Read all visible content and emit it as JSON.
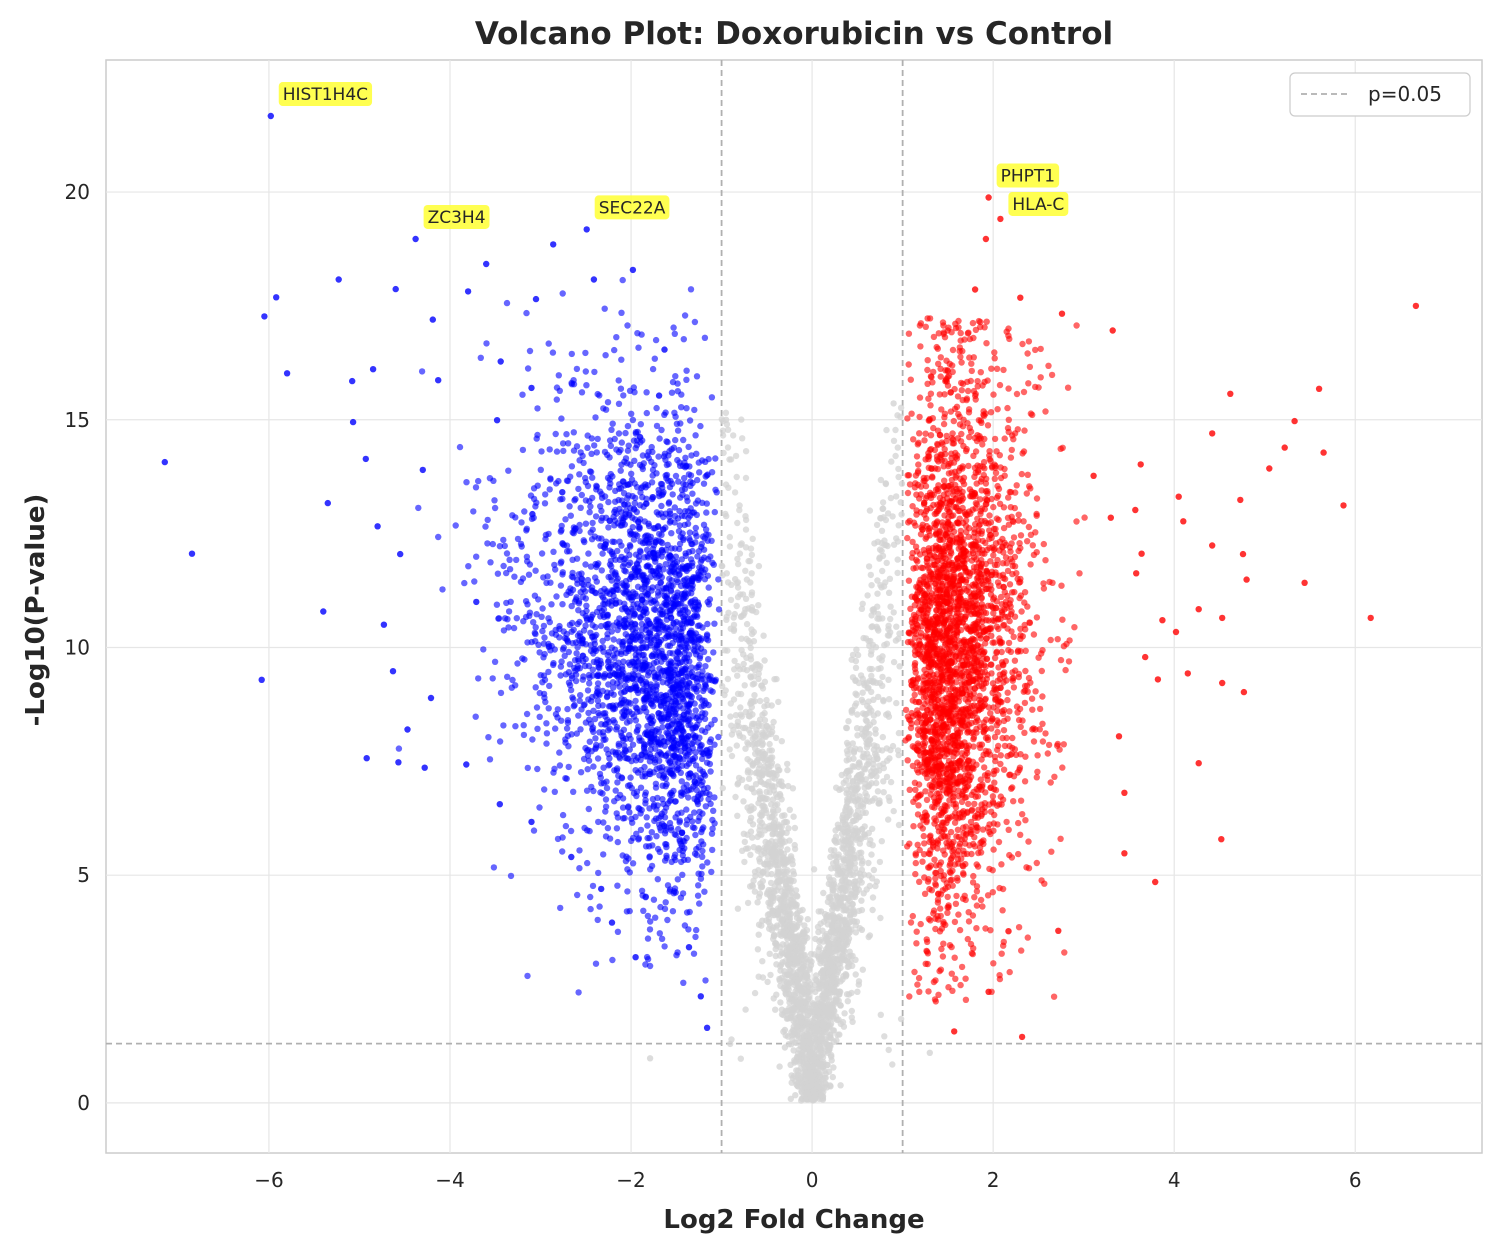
{
  "chart_data": {
    "type": "scatter",
    "title": "Volcano Plot: Doxorubicin vs Control",
    "xlabel": "Log2 Fold Change",
    "ylabel": "-Log10(P-value)",
    "xlim": [
      -7.8,
      7.4
    ],
    "ylim": [
      -1.1,
      22.9
    ],
    "xticks": [
      -6,
      -4,
      -2,
      0,
      2,
      4,
      6
    ],
    "xtick_labels": [
      "−6",
      "−4",
      "−2",
      "0",
      "2",
      "4",
      "6"
    ],
    "yticks": [
      0,
      5,
      10,
      15,
      20
    ],
    "ytick_labels": [
      "0",
      "5",
      "10",
      "15",
      "20"
    ],
    "grid": true,
    "fold_change_threshold": 1,
    "pvalue_threshold": 0.05,
    "pvalue_threshold_neglog10": 1.301,
    "legend": {
      "position": "top-right",
      "entries": [
        {
          "label": "p=0.05",
          "style": "dashed",
          "color": "#b0b0b0"
        }
      ]
    },
    "colors": {
      "down": "#0000ff",
      "up": "#ff0000",
      "ns": "#d3d3d3",
      "threshold_line": "#b0b0b0",
      "annotation_bg": "#ffff33"
    },
    "series": [
      {
        "name": "Downregulated",
        "color": "#0000ff",
        "points": [
          [
            -5.98,
            21.67
          ],
          [
            -4.38,
            18.97
          ],
          [
            -2.49,
            19.18
          ],
          [
            -2.86,
            18.85
          ],
          [
            -6.05,
            17.27
          ],
          [
            -5.92,
            17.69
          ],
          [
            -5.23,
            18.08
          ],
          [
            -4.6,
            17.87
          ],
          [
            -3.6,
            18.42
          ],
          [
            -1.98,
            18.29
          ],
          [
            -2.41,
            18.08
          ],
          [
            -3.05,
            17.65
          ],
          [
            -3.8,
            17.82
          ],
          [
            -5.8,
            16.02
          ],
          [
            -7.15,
            14.07
          ],
          [
            -6.85,
            12.06
          ],
          [
            -6.08,
            9.29
          ],
          [
            -5.4,
            10.79
          ],
          [
            -5.08,
            15.85
          ],
          [
            -4.85,
            16.11
          ],
          [
            -5.07,
            14.95
          ],
          [
            -4.93,
            14.14
          ],
          [
            -4.3,
            13.9
          ],
          [
            -4.13,
            15.87
          ],
          [
            -4.19,
            17.2
          ],
          [
            -5.35,
            13.17
          ],
          [
            -4.8,
            12.66
          ],
          [
            -4.55,
            12.05
          ],
          [
            -4.73,
            10.5
          ],
          [
            -4.63,
            9.48
          ],
          [
            -4.92,
            7.57
          ],
          [
            -4.57,
            7.48
          ],
          [
            -4.28,
            7.36
          ],
          [
            -4.21,
            8.89
          ],
          [
            -4.47,
            8.2
          ],
          [
            -3.82,
            7.43
          ],
          [
            -3.45,
            6.56
          ],
          [
            -3.1,
            6.17
          ],
          [
            -2.66,
            5.4
          ],
          [
            -2.33,
            4.7
          ],
          [
            -2.21,
            3.96
          ],
          [
            -1.95,
            3.2
          ],
          [
            -1.36,
            3.42
          ],
          [
            -1.16,
            1.65
          ],
          [
            -1.23,
            2.34
          ],
          [
            -1.63,
            16.54
          ],
          [
            -1.69,
            15.53
          ],
          [
            -3.1,
            15.7
          ],
          [
            -3.44,
            16.28
          ],
          [
            -3.48,
            14.99
          ],
          [
            -3.09,
            12.93
          ],
          [
            -3.71,
            11.0
          ],
          [
            -2.76,
            13.41
          ],
          [
            -2.29,
            12.19
          ],
          [
            -1.9,
            14.62
          ]
        ]
      },
      {
        "name": "Upregulated",
        "color": "#ff0000",
        "points": [
          [
            1.95,
            19.88
          ],
          [
            2.08,
            19.41
          ],
          [
            1.92,
            18.97
          ],
          [
            1.8,
            17.86
          ],
          [
            2.3,
            17.68
          ],
          [
            2.76,
            17.33
          ],
          [
            6.67,
            17.5
          ],
          [
            3.32,
            16.96
          ],
          [
            5.6,
            15.68
          ],
          [
            5.33,
            14.97
          ],
          [
            5.65,
            14.28
          ],
          [
            5.22,
            14.39
          ],
          [
            5.05,
            13.93
          ],
          [
            4.62,
            15.57
          ],
          [
            4.42,
            14.7
          ],
          [
            3.63,
            14.02
          ],
          [
            3.11,
            13.77
          ],
          [
            5.87,
            13.12
          ],
          [
            4.73,
            13.24
          ],
          [
            4.05,
            13.31
          ],
          [
            3.57,
            13.02
          ],
          [
            3.3,
            12.85
          ],
          [
            4.1,
            12.77
          ],
          [
            4.42,
            12.24
          ],
          [
            4.76,
            12.05
          ],
          [
            3.64,
            12.06
          ],
          [
            3.58,
            11.63
          ],
          [
            4.8,
            11.49
          ],
          [
            5.44,
            11.42
          ],
          [
            6.17,
            10.65
          ],
          [
            4.27,
            10.84
          ],
          [
            4.53,
            10.65
          ],
          [
            3.87,
            10.6
          ],
          [
            4.02,
            10.34
          ],
          [
            3.68,
            9.79
          ],
          [
            4.15,
            9.43
          ],
          [
            4.53,
            9.22
          ],
          [
            4.77,
            9.02
          ],
          [
            3.82,
            9.3
          ],
          [
            3.39,
            8.05
          ],
          [
            3.45,
            6.81
          ],
          [
            3.45,
            5.48
          ],
          [
            3.79,
            4.85
          ],
          [
            4.52,
            5.79
          ],
          [
            4.27,
            7.46
          ],
          [
            2.32,
            1.45
          ],
          [
            1.95,
            2.44
          ],
          [
            1.57,
            1.57
          ],
          [
            2.72,
            3.78
          ],
          [
            2.17,
            3.77
          ]
        ]
      },
      {
        "name": "Not significant",
        "color": "#d3d3d3",
        "points": [
          [
            0.0,
            0.08
          ],
          [
            -0.15,
            0.6
          ],
          [
            0.15,
            0.55
          ],
          [
            -0.3,
            1.6
          ],
          [
            0.3,
            1.5
          ],
          [
            -0.55,
            4.0
          ],
          [
            0.55,
            3.8
          ],
          [
            -0.85,
            11.5
          ],
          [
            0.85,
            11.2
          ],
          [
            -0.95,
            15.0
          ],
          [
            0.9,
            15.36
          ],
          [
            -0.7,
            8.5
          ],
          [
            0.7,
            8.2
          ],
          [
            -1.79,
            0.98
          ],
          [
            1.3,
            1.1
          ]
        ]
      }
    ],
    "annotations": [
      {
        "label": "HIST1H4C",
        "x": -5.98,
        "y": 21.67
      },
      {
        "label": "ZC3H4",
        "x": -4.38,
        "y": 18.97
      },
      {
        "label": "SEC22A",
        "x": -2.49,
        "y": 19.18
      },
      {
        "label": "PHPT1",
        "x": 1.95,
        "y": 19.88
      },
      {
        "label": "HLA-C",
        "x": 2.08,
        "y": 19.41
      }
    ]
  }
}
